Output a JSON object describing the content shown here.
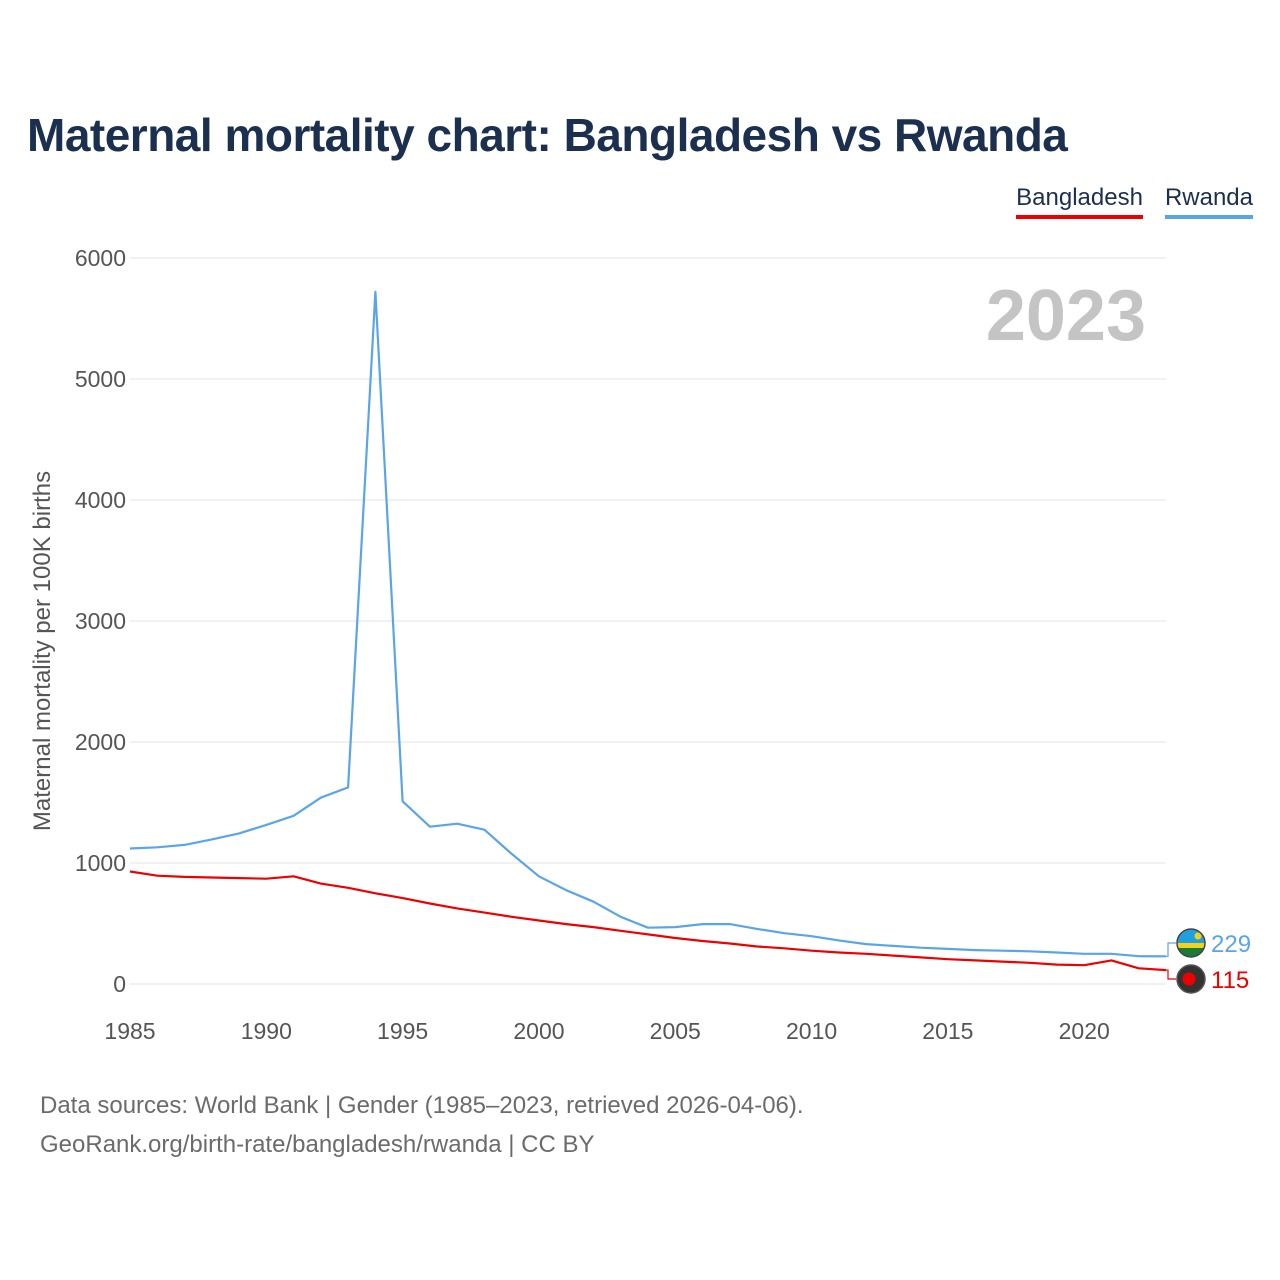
{
  "header": {
    "title": "Maternal mortality chart: Bangladesh vs Rwanda"
  },
  "legend": {
    "items": [
      {
        "label": "Bangladesh",
        "color": "#ee0000"
      },
      {
        "label": "Rwanda",
        "color": "#5aa5e6"
      }
    ]
  },
  "footer": {
    "source_line": "Data sources: World Bank | Gender (1985–2023, retrieved 2026-04-06).",
    "credit_line": "GeoRank.org/birth-rate/bangladesh/rwanda | CC BY"
  },
  "chart_data": {
    "type": "line",
    "title": "Maternal mortality chart: Bangladesh vs Rwanda",
    "xlabel": "",
    "ylabel": "Maternal mortality per 100K births",
    "xlim": [
      1985,
      2023
    ],
    "ylim": [
      0,
      6000
    ],
    "yticks": [
      0,
      1000,
      2000,
      3000,
      4000,
      5000,
      6000
    ],
    "xticks": [
      1985,
      1990,
      1995,
      2000,
      2005,
      2010,
      2015,
      2020
    ],
    "grid": true,
    "current_year": "2023",
    "x": [
      1985,
      1986,
      1987,
      1988,
      1989,
      1990,
      1991,
      1992,
      1993,
      1994,
      1995,
      1996,
      1997,
      1998,
      1999,
      2000,
      2001,
      2002,
      2003,
      2004,
      2005,
      2006,
      2007,
      2008,
      2009,
      2010,
      2011,
      2012,
      2013,
      2014,
      2015,
      2016,
      2017,
      2018,
      2019,
      2020,
      2021,
      2022,
      2023
    ],
    "series": [
      {
        "name": "Rwanda",
        "color": "#5aa5e6",
        "values": [
          1120,
          1130,
          1150,
          1195,
          1245,
          1315,
          1390,
          1540,
          1625,
          5720,
          1510,
          1300,
          1325,
          1275,
          1075,
          890,
          775,
          680,
          555,
          465,
          470,
          495,
          495,
          455,
          420,
          395,
          360,
          330,
          315,
          300,
          290,
          280,
          275,
          270,
          260,
          250,
          250,
          230,
          229
        ],
        "end_label": "229"
      },
      {
        "name": "Bangladesh",
        "color": "#ee0000",
        "values": [
          930,
          895,
          885,
          880,
          875,
          870,
          890,
          830,
          795,
          750,
          710,
          665,
          625,
          590,
          555,
          525,
          495,
          470,
          440,
          410,
          380,
          355,
          335,
          310,
          295,
          275,
          260,
          250,
          235,
          220,
          205,
          195,
          185,
          175,
          160,
          155,
          195,
          130,
          115
        ],
        "end_label": "115"
      }
    ]
  }
}
